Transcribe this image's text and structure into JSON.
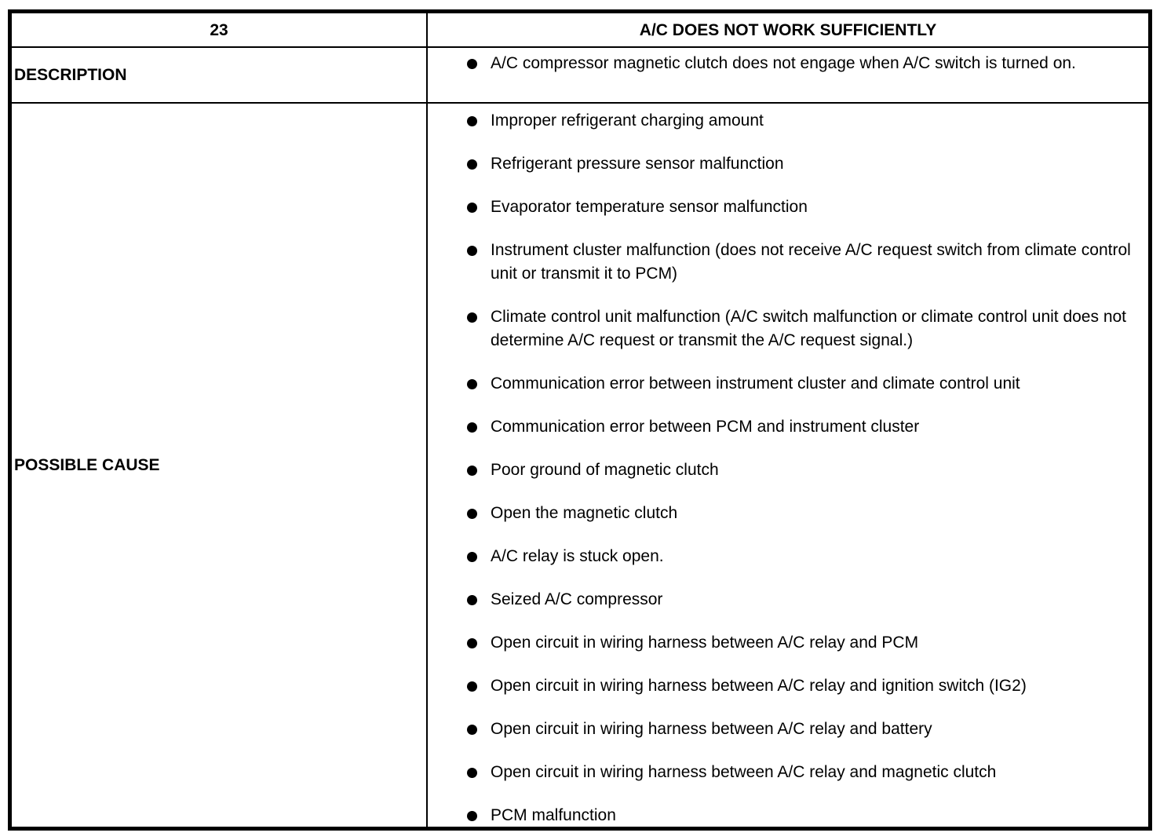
{
  "colors": {
    "text": "#000000",
    "background": "#ffffff",
    "border": "#000000"
  },
  "table": {
    "header": {
      "number": "23",
      "title": "A/C DOES NOT WORK SUFFICIENTLY"
    },
    "description": {
      "label": "DESCRIPTION",
      "items": [
        "A/C compressor magnetic clutch does not engage when A/C switch is turned on."
      ]
    },
    "possible_cause": {
      "label": "POSSIBLE CAUSE",
      "items": [
        "Improper refrigerant charging amount",
        "Refrigerant pressure sensor malfunction",
        "Evaporator temperature sensor malfunction",
        "Instrument cluster malfunction (does not receive A/C request switch from climate control unit or transmit it to PCM)",
        "Climate control unit malfunction (A/C switch malfunction or climate control unit does not determine A/C request or transmit the A/C request signal.)",
        "Communication error between instrument cluster and climate control unit",
        "Communication error between PCM and instrument cluster",
        "Poor ground of magnetic clutch",
        "Open the magnetic clutch",
        "A/C relay is stuck open.",
        "Seized A/C compressor",
        "Open circuit in wiring harness between A/C relay and PCM",
        "Open circuit in wiring harness between A/C relay and ignition switch (IG2)",
        "Open circuit in wiring harness between A/C relay and battery",
        "Open circuit in wiring harness between A/C relay and magnetic clutch",
        "PCM malfunction"
      ]
    }
  }
}
